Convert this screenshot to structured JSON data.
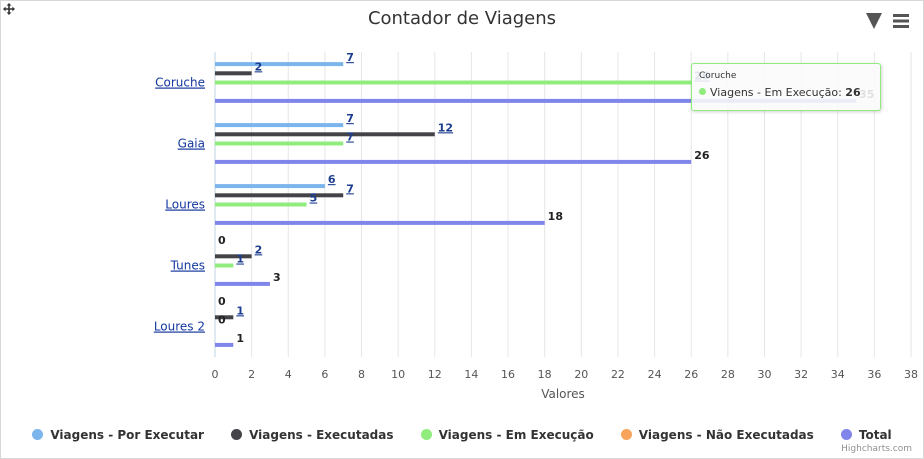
{
  "title": "Contador de Viagens",
  "toolbar": {
    "move_icon": "move-icon",
    "filter_icon": "filter-icon",
    "menu_icon": "hamburger-menu-icon"
  },
  "credits": "Highcharts.com",
  "colors": {
    "por_executar": "#7cb5ec",
    "executadas": "#434348",
    "em_execucao": "#90ed7d",
    "nao_executadas": "#f7a35c",
    "total": "#8085e9"
  },
  "tooltip": {
    "category": "Coruche",
    "series": "Viagens - Em Execução",
    "value": "26"
  },
  "chart_data": {
    "type": "bar",
    "orientation": "horizontal",
    "title": "Contador de Viagens",
    "xlabel": "",
    "ylabel": "Valores",
    "categories": [
      "Coruche",
      "Gaia",
      "Loures",
      "Tunes",
      "Loures 2"
    ],
    "xlim": [
      0,
      38
    ],
    "ticks": [
      "0",
      "2",
      "4",
      "6",
      "8",
      "10",
      "12",
      "14",
      "16",
      "18",
      "20",
      "22",
      "24",
      "26",
      "28",
      "30",
      "32",
      "34",
      "36",
      "38"
    ],
    "grid": true,
    "legend_position": "bottom",
    "series": [
      {
        "name": "Viagens - Por Executar",
        "color": "#7cb5ec",
        "values": [
          7,
          7,
          6,
          0,
          0
        ]
      },
      {
        "name": "Viagens - Executadas",
        "color": "#434348",
        "values": [
          2,
          12,
          7,
          2,
          1
        ]
      },
      {
        "name": "Viagens - Em Execução",
        "color": "#90ed7d",
        "values": [
          26,
          7,
          5,
          1,
          0
        ]
      },
      {
        "name": "Viagens - Não Executadas",
        "color": "#f7a35c",
        "values": [
          0,
          0,
          0,
          0,
          0
        ]
      },
      {
        "name": "Total",
        "color": "#8085e9",
        "values": [
          35,
          26,
          18,
          3,
          1
        ]
      }
    ]
  }
}
